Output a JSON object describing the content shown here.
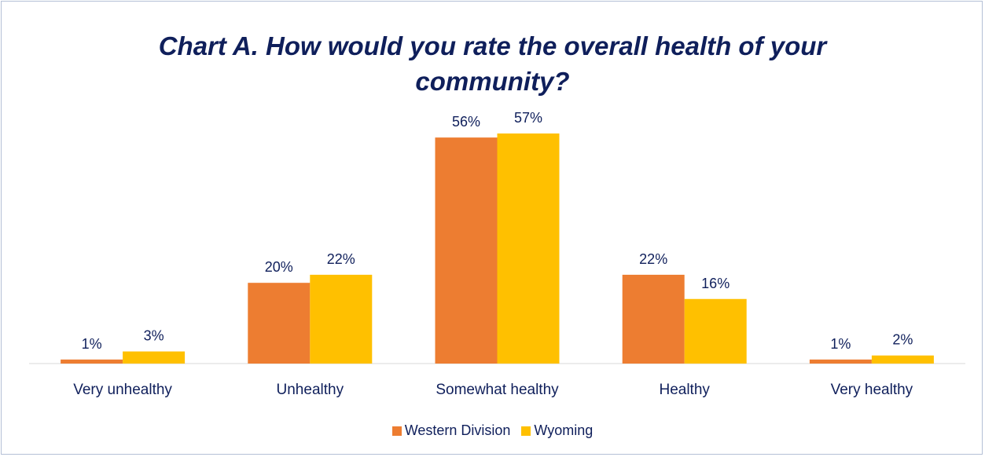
{
  "chart_data": {
    "type": "bar",
    "title_lines": [
      "Chart A. How would you rate the overall health of your",
      "community?"
    ],
    "xlabel": "",
    "ylabel": "",
    "categories": [
      "Very unhealthy",
      "Unhealthy",
      "Somewhat healthy",
      "Healthy",
      "Very healthy"
    ],
    "series": [
      {
        "name": "Western Division",
        "color": "#ed7d31",
        "values": [
          1,
          20,
          56,
          22,
          1
        ],
        "labels": [
          "1%",
          "20%",
          "56%",
          "22%",
          "1%"
        ]
      },
      {
        "name": "Wyoming",
        "color": "#ffc000",
        "values": [
          3,
          22,
          57,
          16,
          2
        ],
        "labels": [
          "3%",
          "22%",
          "57%",
          "16%",
          "2%"
        ]
      }
    ],
    "unit": "%",
    "ylim": [
      0,
      57
    ],
    "grid": false,
    "legend_position": "bottom"
  }
}
